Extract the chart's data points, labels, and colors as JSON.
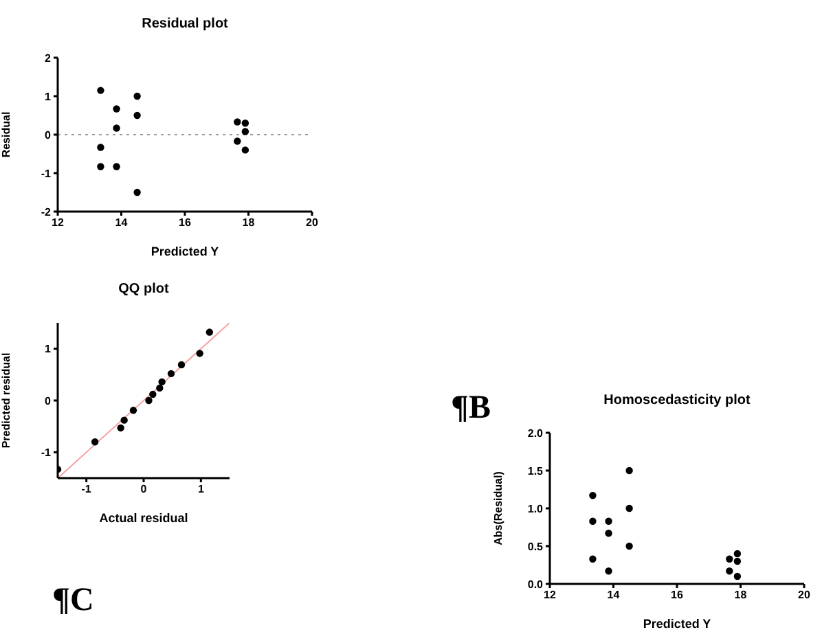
{
  "chart_data": [
    {
      "type": "scatter",
      "title": "Residual plot",
      "xlabel": "Predicted Y",
      "ylabel": "Residual",
      "marker": "circle",
      "series": [
        {
          "color": "#000000",
          "x": [
            13.35,
            13.35,
            13.35,
            13.85,
            13.85,
            13.85,
            14.5,
            14.5,
            14.5,
            17.65,
            17.65,
            17.9,
            17.9,
            17.9
          ],
          "values": [
            1.15,
            -0.33,
            -0.83,
            0.67,
            0.17,
            -0.83,
            1.0,
            0.5,
            -1.5,
            0.33,
            -0.17,
            0.3,
            0.08,
            -0.4
          ]
        }
      ],
      "xlim": [
        12,
        20
      ],
      "xticks": [
        12,
        14,
        16,
        18,
        20
      ],
      "ylim": [
        -2,
        2
      ],
      "yticks": [
        -2,
        -1,
        0,
        1,
        2
      ],
      "ref_lines": [
        {
          "axis": "y",
          "value": 0,
          "color": "#999999",
          "line_style": "dotted"
        }
      ]
    },
    {
      "type": "scatter",
      "title": "QQ plot",
      "xlabel": "Actual residual",
      "ylabel": "Predicted residual",
      "annotations": [
        "¶C"
      ],
      "series": [
        {
          "color": "#000000",
          "marker": "circle",
          "x": [
            -1.5,
            -0.85,
            -0.4,
            -0.34,
            -0.18,
            0.09,
            0.16,
            0.28,
            0.32,
            0.48,
            0.66,
            0.98,
            1.15
          ],
          "values": [
            -1.33,
            -0.8,
            -0.53,
            -0.38,
            -0.19,
            0,
            0.12,
            0.24,
            0.36,
            0.52,
            0.69,
            0.91,
            1.32
          ]
        },
        {
          "type": "line",
          "color": "#f4a0a0",
          "marker": "none",
          "x": [
            -1.5,
            1.5
          ],
          "values": [
            -1.5,
            1.5
          ]
        }
      ],
      "xlim": [
        -1.5,
        1.5
      ],
      "xticks": [
        -1,
        0,
        1
      ],
      "ylim": [
        -1.5,
        1.5
      ],
      "yticks": [
        -1,
        0,
        1
      ]
    },
    {
      "type": "scatter",
      "title": "Homoscedasticity plot",
      "xlabel": "Predicted Y",
      "ylabel": "Abs(Residual)",
      "marker": "circle",
      "annotations": [
        "¶B"
      ],
      "series": [
        {
          "color": "#000000",
          "x": [
            13.35,
            13.35,
            13.35,
            13.85,
            13.85,
            13.85,
            14.5,
            14.5,
            14.5,
            17.65,
            17.65,
            17.9,
            17.9,
            17.9
          ],
          "values": [
            1.17,
            0.83,
            0.33,
            0.83,
            0.67,
            0.17,
            1.5,
            1.0,
            0.5,
            0.33,
            0.17,
            0.4,
            0.3,
            0.1
          ]
        }
      ],
      "xlim": [
        12,
        20
      ],
      "xticks": [
        12,
        14,
        16,
        18,
        20
      ],
      "ylim": [
        0,
        2
      ],
      "yticks": [
        {
          "value": 0,
          "label": "0.0"
        },
        {
          "value": 0.5,
          "label": "0.5"
        },
        {
          "value": 1,
          "label": "1.0"
        },
        {
          "value": 1.5,
          "label": "1.5"
        },
        {
          "value": 2,
          "label": "2.0"
        }
      ]
    }
  ]
}
